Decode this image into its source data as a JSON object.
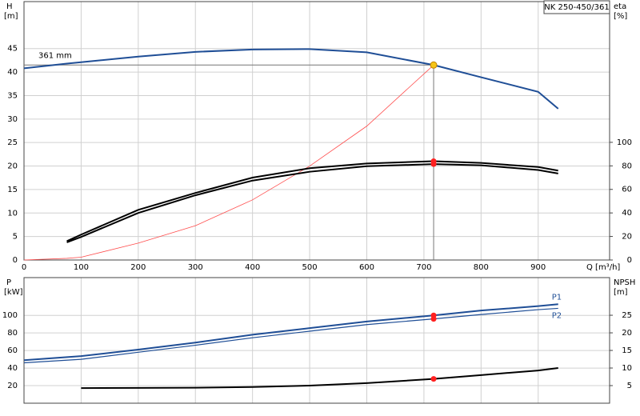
{
  "chart_data": [
    {
      "type": "line",
      "title": "NK 250-450/361",
      "y_label": "H",
      "y_unit": "[m]",
      "y2_label": "eta",
      "y2_unit": "[%]",
      "x_label": "Q [m³/h]",
      "annotation": "361 mm",
      "x": [
        0,
        75,
        100,
        200,
        300,
        400,
        500,
        600,
        717,
        800,
        900,
        935
      ],
      "series": [
        {
          "color": "#1f4e96",
          "width": 2,
          "values": [
            40.8,
            41.8,
            42.1,
            43.3,
            44.3,
            44.8,
            44.9,
            44.2,
            41.5,
            38.9,
            35.8,
            32.2
          ]
        },
        {
          "color": "#ff4d4d",
          "width": 0.8,
          "values": [
            0,
            0.35,
            0.6,
            3.6,
            7.3,
            12.8,
            20,
            28.5,
            41.5,
            null,
            null,
            null
          ]
        },
        {
          "color": "#000000",
          "width": 2,
          "axis": "y2",
          "dot": true,
          "values": [
            null,
            16,
            21.6,
            42.6,
            57,
            70,
            78,
            82,
            84,
            82.5,
            79,
            76
          ]
        },
        {
          "color": "#000000",
          "width": 2,
          "axis": "y2",
          "dot": true,
          "values": [
            null,
            15,
            19.6,
            40,
            55,
            67.5,
            75,
            79.7,
            81.5,
            80.5,
            76.5,
            73.5
          ]
        }
      ],
      "operating_point": {
        "x": 717,
        "y": 41.5
      },
      "xlim": [
        0,
        1025
      ],
      "xticks": [
        0,
        100,
        200,
        300,
        400,
        500,
        600,
        700,
        800,
        900
      ],
      "ylim": [
        0,
        55
      ],
      "yticks": [
        0,
        5,
        10,
        15,
        20,
        25,
        30,
        35,
        40,
        45
      ],
      "y2lim": [
        0,
        219.6
      ],
      "y2ticks": [
        0,
        20,
        40,
        60,
        80,
        100
      ],
      "grid": true
    },
    {
      "type": "line",
      "y_label": "P",
      "y_unit": "[kW]",
      "y2_label": "NPSH",
      "y2_unit": "[m]",
      "x": [
        0,
        100,
        200,
        300,
        400,
        500,
        600,
        717,
        800,
        900,
        935
      ],
      "series": [
        {
          "name": "P1",
          "color": "#1f4e96",
          "width": 2,
          "dot": true,
          "values": [
            49,
            53.6,
            61,
            69,
            78,
            85.5,
            93,
            100,
            105.5,
            110.5,
            112.7
          ]
        },
        {
          "name": "P2",
          "color": "#1f4e96",
          "width": 1.2,
          "dot": true,
          "values": [
            46,
            50,
            58,
            66,
            74.5,
            82,
            89.5,
            96,
            101,
            106.5,
            108
          ]
        },
        {
          "color": "#000000",
          "width": 2,
          "axis": "y2",
          "dot": true,
          "values": [
            null,
            4.3,
            4.35,
            4.4,
            4.6,
            5.0,
            5.7,
            6.9,
            8.0,
            9.3,
            10.0
          ]
        }
      ],
      "xlim": [
        0,
        1025
      ],
      "ylim": [
        0,
        143
      ],
      "yticks": [
        20,
        40,
        60,
        80,
        100
      ],
      "y2lim": [
        0,
        35.7
      ],
      "y2ticks": [
        5,
        10,
        15,
        20,
        25
      ],
      "grid": true
    }
  ]
}
